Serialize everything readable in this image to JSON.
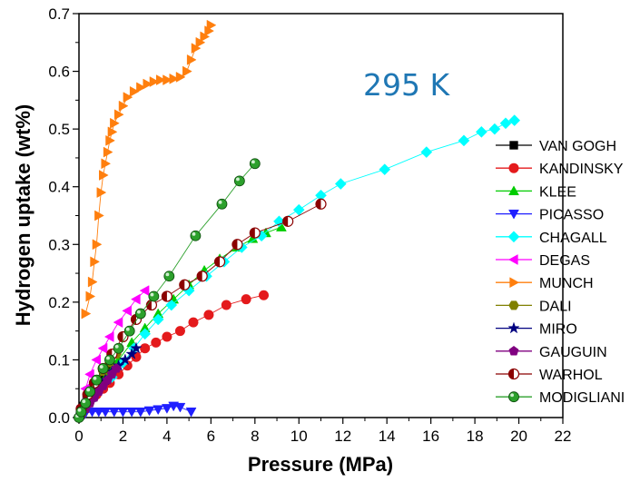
{
  "chart_data": {
    "type": "scatter",
    "xlabel": "Pressure (MPa)",
    "ylabel": "Hydrogen uptake (wt%)",
    "xlim": [
      0,
      22
    ],
    "ylim": [
      0,
      0.7
    ],
    "xticks": [
      0,
      2,
      4,
      6,
      8,
      10,
      12,
      14,
      16,
      18,
      20,
      22
    ],
    "yticks": [
      0.0,
      0.1,
      0.2,
      0.3,
      0.4,
      0.5,
      0.6,
      0.7
    ],
    "xtick_labels": [
      "0",
      "2",
      "4",
      "6",
      "8",
      "10",
      "12",
      "14",
      "16",
      "18",
      "20",
      "22"
    ],
    "ytick_labels": [
      "0.0",
      "0.1",
      "0.2",
      "0.3",
      "0.4",
      "0.5",
      "0.6",
      "0.7"
    ],
    "annotation": {
      "text": "295 K",
      "color": "#1f77b4"
    },
    "legend_position": "right",
    "grid": false,
    "series": [
      {
        "name": "VAN GOGH",
        "color": "#000000",
        "marker": "square",
        "x": [
          0.05,
          0.1,
          0.2,
          0.35,
          0.5,
          0.7,
          0.9,
          1.1,
          1.3,
          1.5
        ],
        "y": [
          0.005,
          0.01,
          0.02,
          0.03,
          0.04,
          0.05,
          0.06,
          0.07,
          0.08,
          0.09
        ]
      },
      {
        "name": "KANDINSKY",
        "color": "#e41a1c",
        "marker": "circle",
        "x": [
          0.1,
          0.3,
          0.5,
          0.8,
          1.1,
          1.4,
          1.8,
          2.2,
          2.6,
          3.0,
          3.5,
          4.0,
          4.6,
          5.2,
          5.9,
          6.7,
          7.6,
          8.4
        ],
        "y": [
          0.01,
          0.02,
          0.03,
          0.04,
          0.05,
          0.06,
          0.075,
          0.09,
          0.105,
          0.12,
          0.13,
          0.14,
          0.15,
          0.165,
          0.178,
          0.195,
          0.205,
          0.212
        ]
      },
      {
        "name": "KLEE",
        "color": "#00cc00",
        "marker": "triangle-up",
        "x": [
          0.1,
          0.3,
          0.6,
          0.9,
          1.3,
          1.8,
          2.4,
          3.0,
          3.6,
          4.3,
          5.0,
          5.7,
          6.4,
          7.2,
          7.9,
          8.5,
          9.2
        ],
        "y": [
          0.01,
          0.025,
          0.04,
          0.06,
          0.08,
          0.1,
          0.13,
          0.155,
          0.18,
          0.205,
          0.23,
          0.255,
          0.275,
          0.295,
          0.31,
          0.32,
          0.33
        ]
      },
      {
        "name": "PICASSO",
        "color": "#1f1fff",
        "marker": "triangle-down",
        "x": [
          0.1,
          0.3,
          0.6,
          0.9,
          1.2,
          1.6,
          2.0,
          2.4,
          2.8,
          3.2,
          3.6,
          4.0,
          4.3,
          4.6,
          5.1
        ],
        "y": [
          0.005,
          0.008,
          0.01,
          0.01,
          0.01,
          0.01,
          0.01,
          0.01,
          0.01,
          0.012,
          0.014,
          0.016,
          0.02,
          0.018,
          0.01
        ]
      },
      {
        "name": "CHAGALL",
        "color": "#00ffff",
        "marker": "diamond",
        "x": [
          1.5,
          2.0,
          2.5,
          3.0,
          3.6,
          4.2,
          5.0,
          5.8,
          6.6,
          7.4,
          8.3,
          9.1,
          10.0,
          11.0,
          11.9,
          13.9,
          15.8,
          17.5,
          18.3,
          18.9,
          19.4,
          19.8
        ],
        "y": [
          0.07,
          0.095,
          0.12,
          0.145,
          0.17,
          0.195,
          0.22,
          0.245,
          0.27,
          0.295,
          0.315,
          0.34,
          0.36,
          0.385,
          0.405,
          0.43,
          0.46,
          0.48,
          0.495,
          0.5,
          0.51,
          0.515
        ]
      },
      {
        "name": "DEGAS",
        "color": "#ff00ff",
        "marker": "triangle-left",
        "x": [
          0.1,
          0.3,
          0.5,
          0.8,
          1.1,
          1.4,
          1.8,
          2.2,
          2.6,
          3.0
        ],
        "y": [
          0.02,
          0.05,
          0.075,
          0.1,
          0.12,
          0.14,
          0.165,
          0.185,
          0.205,
          0.22
        ]
      },
      {
        "name": "MUNCH",
        "color": "#ff7f0e",
        "marker": "triangle-right",
        "x": [
          0.3,
          0.5,
          0.6,
          0.7,
          0.8,
          0.9,
          1.0,
          1.1,
          1.2,
          1.3,
          1.4,
          1.5,
          1.6,
          1.8,
          2.0,
          2.2,
          2.5,
          2.8,
          3.1,
          3.4,
          3.7,
          4.0,
          4.3,
          4.6,
          4.9,
          5.1,
          5.3,
          5.5,
          5.7,
          5.9,
          6.0
        ],
        "y": [
          0.18,
          0.21,
          0.235,
          0.27,
          0.3,
          0.35,
          0.39,
          0.42,
          0.44,
          0.46,
          0.48,
          0.495,
          0.51,
          0.525,
          0.54,
          0.555,
          0.565,
          0.572,
          0.578,
          0.582,
          0.585,
          0.585,
          0.587,
          0.59,
          0.6,
          0.62,
          0.64,
          0.65,
          0.66,
          0.67,
          0.68
        ]
      },
      {
        "name": "DALI",
        "color": "#808000",
        "marker": "hexagon",
        "x": [
          0.1,
          0.3,
          0.5,
          0.8,
          1.1,
          1.4,
          1.7
        ],
        "y": [
          0.005,
          0.02,
          0.04,
          0.06,
          0.08,
          0.095,
          0.11
        ]
      },
      {
        "name": "MIRO",
        "color": "#000080",
        "marker": "star",
        "x": [
          0.1,
          0.3,
          0.6,
          0.9,
          1.2,
          1.5,
          1.8,
          2.1,
          2.4,
          2.6
        ],
        "y": [
          0.005,
          0.02,
          0.035,
          0.05,
          0.065,
          0.08,
          0.09,
          0.1,
          0.11,
          0.12
        ]
      },
      {
        "name": "GAUGUIN",
        "color": "#800080",
        "marker": "pentagon",
        "x": [
          0.1,
          0.3,
          0.5,
          0.7,
          0.9,
          1.1,
          1.3,
          1.5,
          1.7
        ],
        "y": [
          0.005,
          0.015,
          0.025,
          0.035,
          0.045,
          0.055,
          0.065,
          0.075,
          0.085
        ]
      },
      {
        "name": "WARHOL",
        "color": "#8b0000",
        "marker": "half-circle",
        "x": [
          0.1,
          0.4,
          0.7,
          1.1,
          1.5,
          2.0,
          2.6,
          3.3,
          4.0,
          4.8,
          5.6,
          6.4,
          7.2,
          8.0,
          9.5,
          11.0
        ],
        "y": [
          0.015,
          0.04,
          0.06,
          0.085,
          0.11,
          0.14,
          0.17,
          0.195,
          0.21,
          0.23,
          0.245,
          0.27,
          0.3,
          0.32,
          0.34,
          0.37
        ]
      },
      {
        "name": "MODIGLIANI",
        "color": "#2ca02c",
        "marker": "sphere",
        "x": [
          0.0,
          0.1,
          0.3,
          0.5,
          0.8,
          1.1,
          1.4,
          1.8,
          2.3,
          2.8,
          3.4,
          4.1,
          5.3,
          6.5,
          7.3,
          8.0
        ],
        "y": [
          0.0,
          0.01,
          0.025,
          0.045,
          0.065,
          0.085,
          0.1,
          0.12,
          0.15,
          0.18,
          0.21,
          0.245,
          0.315,
          0.37,
          0.41,
          0.44
        ]
      }
    ]
  }
}
